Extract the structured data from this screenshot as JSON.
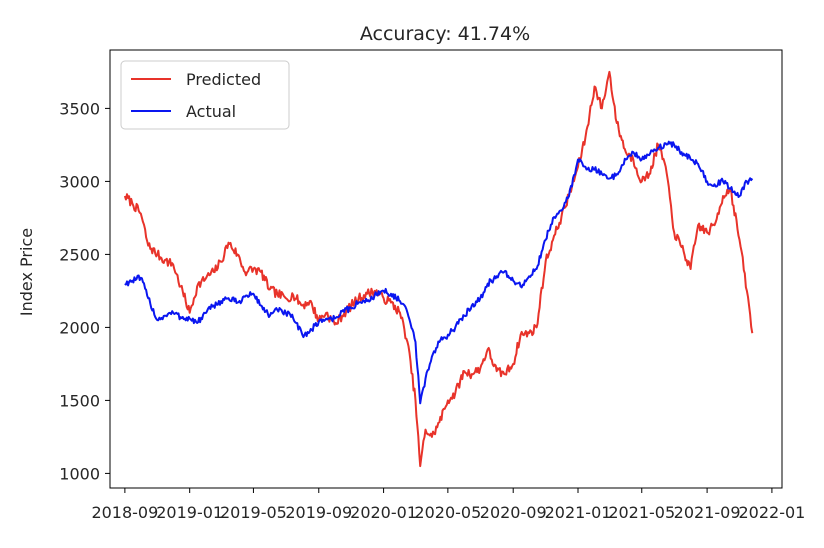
{
  "chart_data": {
    "type": "line",
    "title": "Accuracy: 41.74%",
    "xlabel": "",
    "ylabel": "Index Price",
    "x_ticks": [
      "2018-09",
      "2019-01",
      "2019-05",
      "2019-09",
      "2020-01",
      "2020-05",
      "2020-09",
      "2021-01",
      "2021-05",
      "2021-09",
      "2022-01"
    ],
    "y_ticks": [
      "1000",
      "1500",
      "2000",
      "2500",
      "3000",
      "3500"
    ],
    "xlim": [
      "2018-08-04",
      "2022-01-20"
    ],
    "ylim": [
      900,
      3900
    ],
    "grid": false,
    "legend_position": "top-left",
    "series": [
      {
        "name": "Predicted",
        "color": "#e8332a",
        "points": [
          [
            "2018-09-01",
            2900
          ],
          [
            "2018-09-15",
            2850
          ],
          [
            "2018-10-01",
            2780
          ],
          [
            "2018-10-15",
            2560
          ],
          [
            "2018-11-01",
            2500
          ],
          [
            "2018-11-15",
            2460
          ],
          [
            "2018-12-01",
            2430
          ],
          [
            "2018-12-15",
            2280
          ],
          [
            "2019-01-01",
            2100
          ],
          [
            "2019-01-15",
            2280
          ],
          [
            "2019-02-01",
            2340
          ],
          [
            "2019-02-15",
            2380
          ],
          [
            "2019-03-01",
            2450
          ],
          [
            "2019-03-15",
            2580
          ],
          [
            "2019-04-01",
            2500
          ],
          [
            "2019-04-15",
            2380
          ],
          [
            "2019-05-01",
            2400
          ],
          [
            "2019-05-15",
            2380
          ],
          [
            "2019-06-01",
            2260
          ],
          [
            "2019-06-15",
            2230
          ],
          [
            "2019-07-01",
            2200
          ],
          [
            "2019-07-15",
            2220
          ],
          [
            "2019-08-01",
            2150
          ],
          [
            "2019-08-15",
            2180
          ],
          [
            "2019-09-01",
            2050
          ],
          [
            "2019-09-15",
            2100
          ],
          [
            "2019-10-01",
            2020
          ],
          [
            "2019-10-15",
            2080
          ],
          [
            "2019-11-01",
            2150
          ],
          [
            "2019-11-15",
            2200
          ],
          [
            "2019-12-01",
            2230
          ],
          [
            "2019-12-15",
            2250
          ],
          [
            "2020-01-01",
            2200
          ],
          [
            "2020-01-15",
            2170
          ],
          [
            "2020-02-01",
            2100
          ],
          [
            "2020-02-15",
            1900
          ],
          [
            "2020-03-01",
            1500
          ],
          [
            "2020-03-10",
            1050
          ],
          [
            "2020-03-20",
            1300
          ],
          [
            "2020-04-01",
            1250
          ],
          [
            "2020-04-15",
            1350
          ],
          [
            "2020-05-01",
            1500
          ],
          [
            "2020-05-15",
            1550
          ],
          [
            "2020-06-01",
            1700
          ],
          [
            "2020-06-15",
            1680
          ],
          [
            "2020-07-01",
            1720
          ],
          [
            "2020-07-15",
            1850
          ],
          [
            "2020-08-01",
            1700
          ],
          [
            "2020-08-15",
            1680
          ],
          [
            "2020-09-01",
            1750
          ],
          [
            "2020-09-15",
            1950
          ],
          [
            "2020-10-01",
            1960
          ],
          [
            "2020-10-15",
            2000
          ],
          [
            "2020-11-01",
            2450
          ],
          [
            "2020-11-15",
            2600
          ],
          [
            "2020-12-01",
            2760
          ],
          [
            "2020-12-15",
            2900
          ],
          [
            "2021-01-01",
            3100
          ],
          [
            "2021-01-15",
            3300
          ],
          [
            "2021-02-01",
            3650
          ],
          [
            "2021-02-15",
            3500
          ],
          [
            "2021-03-01",
            3750
          ],
          [
            "2021-03-15",
            3400
          ],
          [
            "2021-04-01",
            3200
          ],
          [
            "2021-04-15",
            3150
          ],
          [
            "2021-05-01",
            3000
          ],
          [
            "2021-05-15",
            3050
          ],
          [
            "2021-06-01",
            3250
          ],
          [
            "2021-06-15",
            3100
          ],
          [
            "2021-07-01",
            2650
          ],
          [
            "2021-07-15",
            2550
          ],
          [
            "2021-08-01",
            2400
          ],
          [
            "2021-08-15",
            2700
          ],
          [
            "2021-09-01",
            2650
          ],
          [
            "2021-09-15",
            2700
          ],
          [
            "2021-10-01",
            2900
          ],
          [
            "2021-10-15",
            2950
          ],
          [
            "2021-11-01",
            2600
          ],
          [
            "2021-11-15",
            2250
          ],
          [
            "2021-11-25",
            1960
          ]
        ]
      },
      {
        "name": "Actual",
        "color": "#0a16f0",
        "points": [
          [
            "2018-09-01",
            2300
          ],
          [
            "2018-09-15",
            2320
          ],
          [
            "2018-10-01",
            2340
          ],
          [
            "2018-10-15",
            2200
          ],
          [
            "2018-11-01",
            2050
          ],
          [
            "2018-11-15",
            2080
          ],
          [
            "2018-12-01",
            2100
          ],
          [
            "2018-12-15",
            2070
          ],
          [
            "2019-01-01",
            2060
          ],
          [
            "2019-01-15",
            2030
          ],
          [
            "2019-02-01",
            2100
          ],
          [
            "2019-02-15",
            2150
          ],
          [
            "2019-03-01",
            2180
          ],
          [
            "2019-03-15",
            2200
          ],
          [
            "2019-04-01",
            2170
          ],
          [
            "2019-04-15",
            2210
          ],
          [
            "2019-05-01",
            2230
          ],
          [
            "2019-05-15",
            2150
          ],
          [
            "2019-06-01",
            2080
          ],
          [
            "2019-06-15",
            2120
          ],
          [
            "2019-07-01",
            2100
          ],
          [
            "2019-07-15",
            2060
          ],
          [
            "2019-08-01",
            1950
          ],
          [
            "2019-08-15",
            1970
          ],
          [
            "2019-09-01",
            2040
          ],
          [
            "2019-09-15",
            2060
          ],
          [
            "2019-10-01",
            2060
          ],
          [
            "2019-10-15",
            2110
          ],
          [
            "2019-11-01",
            2130
          ],
          [
            "2019-11-15",
            2170
          ],
          [
            "2019-12-01",
            2180
          ],
          [
            "2019-12-15",
            2220
          ],
          [
            "2020-01-01",
            2250
          ],
          [
            "2020-01-15",
            2230
          ],
          [
            "2020-02-01",
            2180
          ],
          [
            "2020-02-15",
            2100
          ],
          [
            "2020-03-01",
            1900
          ],
          [
            "2020-03-10",
            1480
          ],
          [
            "2020-03-20",
            1650
          ],
          [
            "2020-04-01",
            1800
          ],
          [
            "2020-04-15",
            1900
          ],
          [
            "2020-05-01",
            1950
          ],
          [
            "2020-05-15",
            2000
          ],
          [
            "2020-06-01",
            2080
          ],
          [
            "2020-06-15",
            2150
          ],
          [
            "2020-07-01",
            2200
          ],
          [
            "2020-07-15",
            2300
          ],
          [
            "2020-08-01",
            2350
          ],
          [
            "2020-08-15",
            2380
          ],
          [
            "2020-09-01",
            2320
          ],
          [
            "2020-09-15",
            2280
          ],
          [
            "2020-10-01",
            2350
          ],
          [
            "2020-10-15",
            2400
          ],
          [
            "2020-11-01",
            2600
          ],
          [
            "2020-11-15",
            2750
          ],
          [
            "2020-12-01",
            2800
          ],
          [
            "2020-12-15",
            2900
          ],
          [
            "2021-01-01",
            3150
          ],
          [
            "2021-01-15",
            3100
          ],
          [
            "2021-02-01",
            3080
          ],
          [
            "2021-02-15",
            3050
          ],
          [
            "2021-03-01",
            3020
          ],
          [
            "2021-03-15",
            3050
          ],
          [
            "2021-04-01",
            3150
          ],
          [
            "2021-04-15",
            3200
          ],
          [
            "2021-05-01",
            3150
          ],
          [
            "2021-05-15",
            3180
          ],
          [
            "2021-06-01",
            3230
          ],
          [
            "2021-06-15",
            3260
          ],
          [
            "2021-07-01",
            3250
          ],
          [
            "2021-07-15",
            3200
          ],
          [
            "2021-08-01",
            3150
          ],
          [
            "2021-08-15",
            3120
          ],
          [
            "2021-09-01",
            3000
          ],
          [
            "2021-09-15",
            2980
          ],
          [
            "2021-10-01",
            3000
          ],
          [
            "2021-10-15",
            2950
          ],
          [
            "2021-11-01",
            2900
          ],
          [
            "2021-11-15",
            3000
          ],
          [
            "2021-11-25",
            3020
          ]
        ]
      }
    ]
  }
}
